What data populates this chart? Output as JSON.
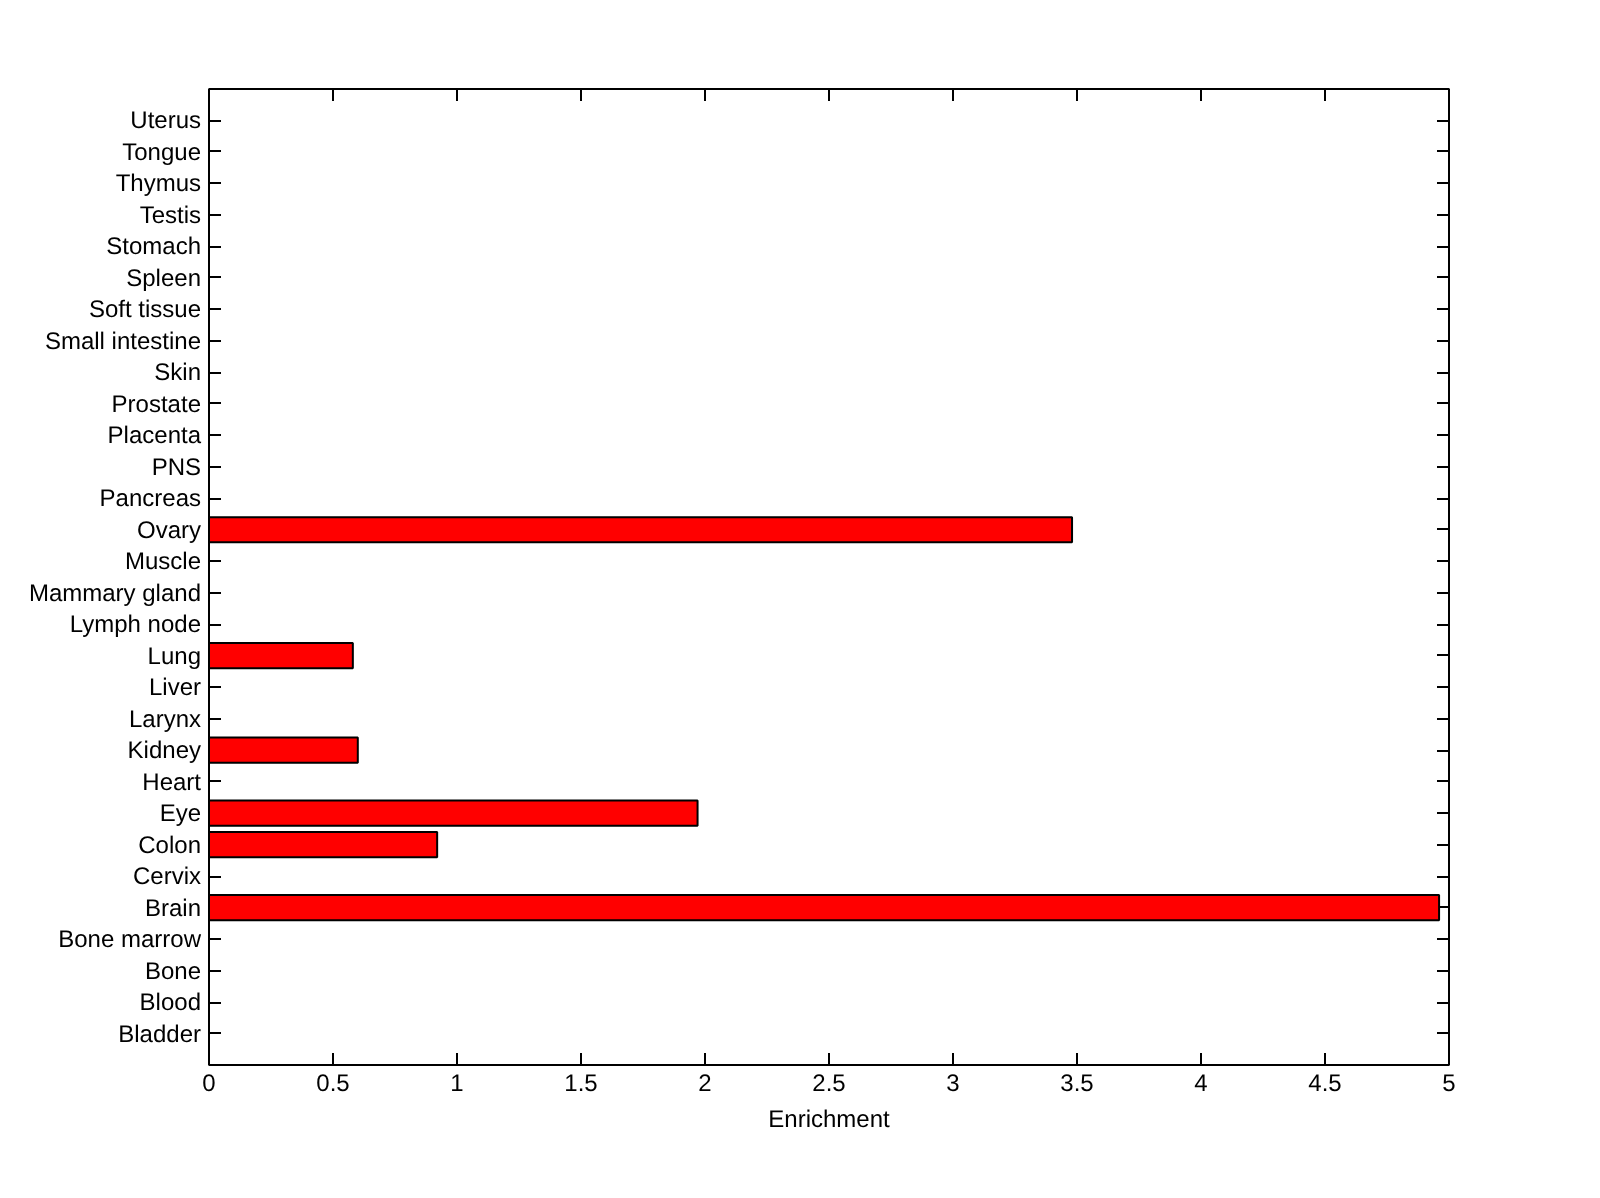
{
  "chart_data": {
    "type": "bar",
    "orientation": "horizontal",
    "xlabel": "Enrichment",
    "categories": [
      "Uterus",
      "Tongue",
      "Thymus",
      "Testis",
      "Stomach",
      "Spleen",
      "Soft tissue",
      "Small intestine",
      "Skin",
      "Prostate",
      "Placenta",
      "PNS",
      "Pancreas",
      "Ovary",
      "Muscle",
      "Mammary gland",
      "Lymph node",
      "Lung",
      "Liver",
      "Larynx",
      "Kidney",
      "Heart",
      "Eye",
      "Colon",
      "Cervix",
      "Brain",
      "Bone marrow",
      "Bone",
      "Blood",
      "Bladder"
    ],
    "values": [
      0,
      0,
      0,
      0,
      0,
      0,
      0,
      0,
      0,
      0,
      0,
      0,
      0,
      3.48,
      0,
      0,
      0,
      0.58,
      0,
      0,
      0.6,
      0,
      1.97,
      0.92,
      0,
      4.96,
      0,
      0,
      0,
      0
    ],
    "color": "#ff0000",
    "xlim": [
      0,
      5
    ],
    "xticks": [
      0,
      0.5,
      1,
      1.5,
      2,
      2.5,
      3,
      3.5,
      4,
      4.5,
      5
    ]
  }
}
